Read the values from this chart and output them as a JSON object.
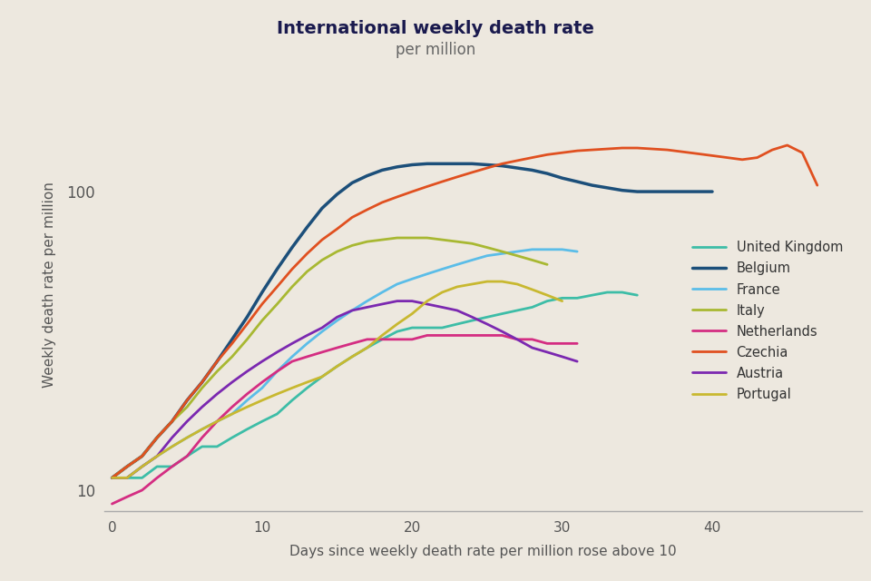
{
  "title": "International weekly death rate",
  "subtitle": "per million",
  "xlabel": "Days since weekly death rate per million rose above 10",
  "ylabel": "Weekly death rate per million",
  "background_color": "#ede8df",
  "title_color": "#1a1a4e",
  "subtitle_color": "#666666",
  "axis_label_color": "#555555",
  "tick_color": "#555555",
  "spine_color": "#aaaaaa",
  "ylim_log": [
    8.5,
    280
  ],
  "xlim": [
    -0.5,
    50
  ],
  "series": [
    {
      "name": "United Kingdom",
      "color": "#3dbda7",
      "lw": 2.0,
      "x": [
        0,
        1,
        2,
        3,
        4,
        5,
        6,
        7,
        8,
        9,
        10,
        11,
        12,
        13,
        14,
        15,
        16,
        17,
        18,
        19,
        20,
        21,
        22,
        23,
        24,
        25,
        26,
        27,
        28,
        29,
        30,
        31,
        32,
        33,
        34,
        35
      ],
      "y": [
        11,
        11,
        11,
        12,
        12,
        13,
        14,
        14,
        15,
        16,
        17,
        18,
        20,
        22,
        24,
        26,
        28,
        30,
        32,
        34,
        35,
        35,
        35,
        36,
        37,
        38,
        39,
        40,
        41,
        43,
        44,
        44,
        45,
        46,
        46,
        45
      ]
    },
    {
      "name": "Belgium",
      "color": "#1c4f7a",
      "lw": 2.5,
      "x": [
        0,
        1,
        2,
        3,
        4,
        5,
        6,
        7,
        8,
        9,
        10,
        11,
        12,
        13,
        14,
        15,
        16,
        17,
        18,
        19,
        20,
        21,
        22,
        23,
        24,
        25,
        26,
        27,
        28,
        29,
        30,
        31,
        32,
        33,
        34,
        35,
        36,
        37,
        38,
        39,
        40
      ],
      "y": [
        11,
        12,
        13,
        15,
        17,
        20,
        23,
        27,
        32,
        38,
        46,
        55,
        65,
        76,
        88,
        98,
        107,
        113,
        118,
        121,
        123,
        124,
        124,
        124,
        124,
        123,
        122,
        120,
        118,
        115,
        111,
        108,
        105,
        103,
        101,
        100,
        100,
        100,
        100,
        100,
        100
      ]
    },
    {
      "name": "France",
      "color": "#5bbde8",
      "lw": 2.0,
      "x": [
        0,
        1,
        2,
        3,
        4,
        5,
        6,
        7,
        8,
        9,
        10,
        11,
        12,
        13,
        14,
        15,
        16,
        17,
        18,
        19,
        20,
        21,
        22,
        23,
        24,
        25,
        26,
        27,
        28,
        29,
        30,
        31
      ],
      "y": [
        11,
        11,
        12,
        13,
        14,
        15,
        16,
        17,
        18,
        20,
        22,
        25,
        28,
        31,
        34,
        37,
        40,
        43,
        46,
        49,
        51,
        53,
        55,
        57,
        59,
        61,
        62,
        63,
        64,
        64,
        64,
        63
      ]
    },
    {
      "name": "Italy",
      "color": "#a8b832",
      "lw": 2.0,
      "x": [
        0,
        1,
        2,
        3,
        4,
        5,
        6,
        7,
        8,
        9,
        10,
        11,
        12,
        13,
        14,
        15,
        16,
        17,
        18,
        19,
        20,
        21,
        22,
        23,
        24,
        25,
        26,
        27,
        28,
        29
      ],
      "y": [
        11,
        12,
        13,
        15,
        17,
        19,
        22,
        25,
        28,
        32,
        37,
        42,
        48,
        54,
        59,
        63,
        66,
        68,
        69,
        70,
        70,
        70,
        69,
        68,
        67,
        65,
        63,
        61,
        59,
        57
      ]
    },
    {
      "name": "Netherlands",
      "color": "#d42d82",
      "lw": 2.0,
      "x": [
        0,
        1,
        2,
        3,
        4,
        5,
        6,
        7,
        8,
        9,
        10,
        11,
        12,
        13,
        14,
        15,
        16,
        17,
        18,
        19,
        20,
        21,
        22,
        23,
        24,
        25,
        26,
        27,
        28,
        29,
        30,
        31
      ],
      "y": [
        9,
        9.5,
        10,
        11,
        12,
        13,
        15,
        17,
        19,
        21,
        23,
        25,
        27,
        28,
        29,
        30,
        31,
        32,
        32,
        32,
        32,
        33,
        33,
        33,
        33,
        33,
        33,
        32,
        32,
        31,
        31,
        31
      ]
    },
    {
      "name": "Czechia",
      "color": "#e05020",
      "lw": 2.0,
      "x": [
        0,
        1,
        2,
        3,
        4,
        5,
        6,
        7,
        8,
        9,
        10,
        11,
        12,
        13,
        14,
        15,
        16,
        17,
        18,
        19,
        20,
        21,
        22,
        23,
        24,
        25,
        26,
        27,
        28,
        29,
        30,
        31,
        32,
        33,
        34,
        35,
        36,
        37,
        38,
        39,
        40,
        41,
        42,
        43,
        44,
        45,
        46,
        47
      ],
      "y": [
        11,
        12,
        13,
        15,
        17,
        20,
        23,
        27,
        31,
        36,
        42,
        48,
        55,
        62,
        69,
        75,
        82,
        87,
        92,
        96,
        100,
        104,
        108,
        112,
        116,
        120,
        124,
        127,
        130,
        133,
        135,
        137,
        138,
        139,
        140,
        140,
        139,
        138,
        136,
        134,
        132,
        130,
        128,
        130,
        138,
        143,
        135,
        105
      ]
    },
    {
      "name": "Austria",
      "color": "#7b28b0",
      "lw": 2.0,
      "x": [
        0,
        1,
        2,
        3,
        4,
        5,
        6,
        7,
        8,
        9,
        10,
        11,
        12,
        13,
        14,
        15,
        16,
        17,
        18,
        19,
        20,
        21,
        22,
        23,
        24,
        25,
        26,
        27,
        28,
        29,
        30,
        31
      ],
      "y": [
        11,
        11,
        12,
        13,
        15,
        17,
        19,
        21,
        23,
        25,
        27,
        29,
        31,
        33,
        35,
        38,
        40,
        41,
        42,
        43,
        43,
        42,
        41,
        40,
        38,
        36,
        34,
        32,
        30,
        29,
        28,
        27
      ]
    },
    {
      "name": "Portugal",
      "color": "#c8b830",
      "lw": 2.0,
      "x": [
        0,
        1,
        2,
        3,
        4,
        5,
        6,
        7,
        8,
        9,
        10,
        11,
        12,
        13,
        14,
        15,
        16,
        17,
        18,
        19,
        20,
        21,
        22,
        23,
        24,
        25,
        26,
        27,
        28,
        29,
        30
      ],
      "y": [
        11,
        11,
        12,
        13,
        14,
        15,
        16,
        17,
        18,
        19,
        20,
        21,
        22,
        23,
        24,
        26,
        28,
        30,
        33,
        36,
        39,
        43,
        46,
        48,
        49,
        50,
        50,
        49,
        47,
        45,
        43
      ]
    }
  ]
}
